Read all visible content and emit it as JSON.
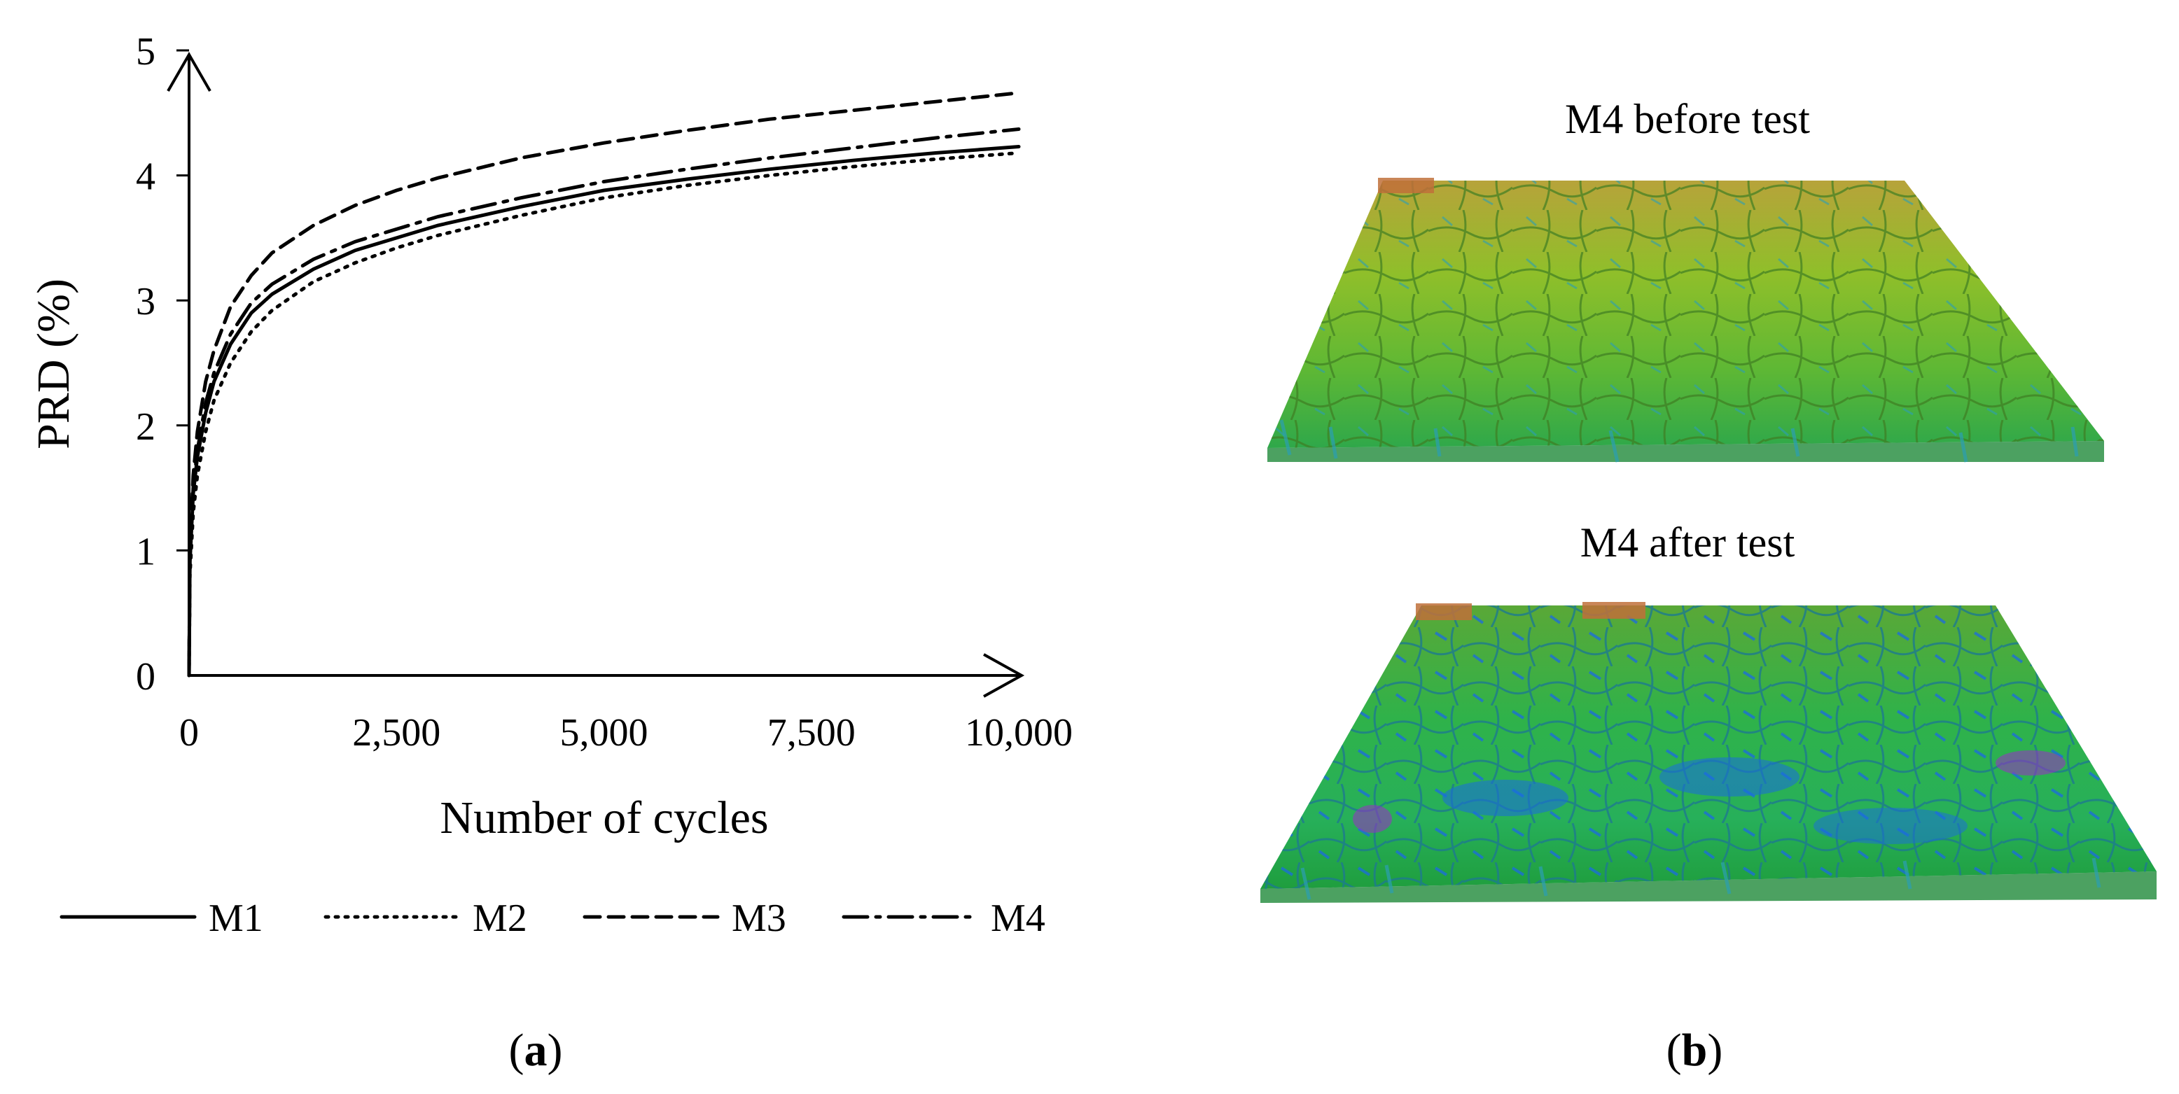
{
  "chart_data": {
    "type": "line",
    "xlabel": "Number of cycles",
    "ylabel": "PRD (%)",
    "xlim": [
      0,
      10000
    ],
    "ylim": [
      0,
      5
    ],
    "xticks": [
      0,
      2500,
      5000,
      7500,
      10000
    ],
    "xtick_labels": [
      "0",
      "2,500",
      "5,000",
      "7,500",
      "10,000"
    ],
    "yticks": [
      0,
      1,
      2,
      3,
      4,
      5
    ],
    "ytick_labels": [
      "0",
      "1",
      "2",
      "3",
      "4",
      "5"
    ],
    "grid": false,
    "legend_position": "bottom",
    "x": [
      0,
      10,
      50,
      100,
      200,
      300,
      500,
      750,
      1000,
      1500,
      2000,
      2500,
      3000,
      4000,
      5000,
      6000,
      7000,
      8000,
      9000,
      10000
    ],
    "series": [
      {
        "name": "M1",
        "dash": "solid",
        "values": [
          0,
          0.9,
          1.45,
          1.75,
          2.1,
          2.35,
          2.65,
          2.9,
          3.05,
          3.25,
          3.4,
          3.5,
          3.6,
          3.75,
          3.88,
          3.97,
          4.05,
          4.12,
          4.18,
          4.23
        ]
      },
      {
        "name": "M2",
        "dash": "dotted",
        "values": [
          0,
          0.8,
          1.3,
          1.6,
          1.95,
          2.2,
          2.5,
          2.75,
          2.92,
          3.15,
          3.3,
          3.42,
          3.52,
          3.68,
          3.82,
          3.92,
          4.0,
          4.07,
          4.13,
          4.18
        ]
      },
      {
        "name": "M3",
        "dash": "dashed",
        "values": [
          0,
          1.0,
          1.6,
          1.95,
          2.35,
          2.6,
          2.95,
          3.2,
          3.38,
          3.6,
          3.76,
          3.88,
          3.98,
          4.14,
          4.26,
          4.36,
          4.45,
          4.52,
          4.59,
          4.66
        ]
      },
      {
        "name": "M4",
        "dash": "dashdot",
        "values": [
          0,
          0.95,
          1.5,
          1.8,
          2.18,
          2.42,
          2.73,
          2.98,
          3.13,
          3.33,
          3.47,
          3.57,
          3.67,
          3.82,
          3.95,
          4.05,
          4.14,
          4.22,
          4.3,
          4.37
        ]
      }
    ]
  },
  "panel_b": {
    "top_title": "M4 before test",
    "bottom_title": "M4 after test"
  },
  "captions": {
    "a": "a",
    "b": "b"
  },
  "colors": {
    "surface_high": "#c0703a",
    "surface_mid": "#8fbf2a",
    "surface_green": "#2fb24a",
    "surface_low": "#1a6be0",
    "surface_min": "#9c2cc8"
  }
}
